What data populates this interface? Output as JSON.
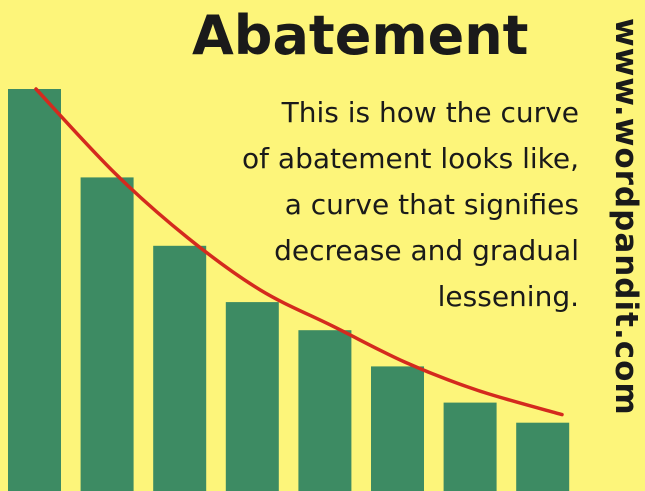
{
  "title": "Abatement",
  "description_lines": [
    "This is how the curve",
    "of abatement looks like,",
    "a curve that signifies",
    "decrease and gradual",
    "lessening."
  ],
  "watermark": "www.wordpandit.com",
  "colors": {
    "background": "#fdf57a",
    "bars": "#3d8b63",
    "curve": "#d42a1e",
    "text": "#1a1a1a"
  },
  "chart_data": {
    "type": "bar",
    "values": [
      100,
      78,
      61,
      47,
      40,
      31,
      22,
      17
    ],
    "curve": [
      100,
      79,
      63,
      50,
      41,
      32,
      25,
      19
    ],
    "ylim": [
      0,
      100
    ],
    "xlabel": "",
    "ylabel": "",
    "grid": false
  }
}
